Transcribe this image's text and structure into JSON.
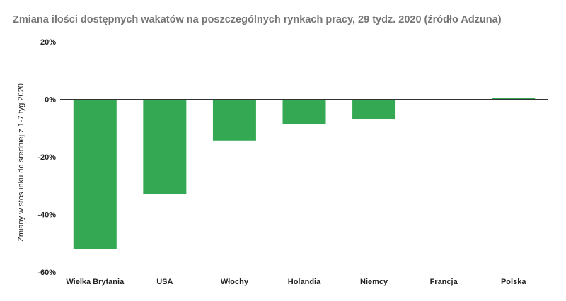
{
  "chart_data": {
    "type": "bar",
    "title": "Zmiana ilości dostępnych wakatów na poszczególnych rynkach pracy, 29 tydz. 2020 (źródło Adzuna)",
    "xlabel": "",
    "ylabel": "Zmiany w stosunku do średniej z 1-7 tyg 2020",
    "categories": [
      "Wielka Brytania",
      "USA",
      "Włochy",
      "Holandia",
      "Niemcy",
      "Francja",
      "Polska"
    ],
    "values": [
      -52,
      -33,
      -14.3,
      -8.6,
      -7,
      -0.3,
      0.5
    ],
    "ylim": [
      -60,
      20
    ],
    "yticks": [
      20,
      0,
      -20,
      -40,
      -60
    ],
    "ytick_labels": [
      "20%",
      "0%",
      "-20%",
      "-40%",
      "-60%"
    ],
    "bar_color": "#34a853",
    "grid": false,
    "legend": "none"
  }
}
